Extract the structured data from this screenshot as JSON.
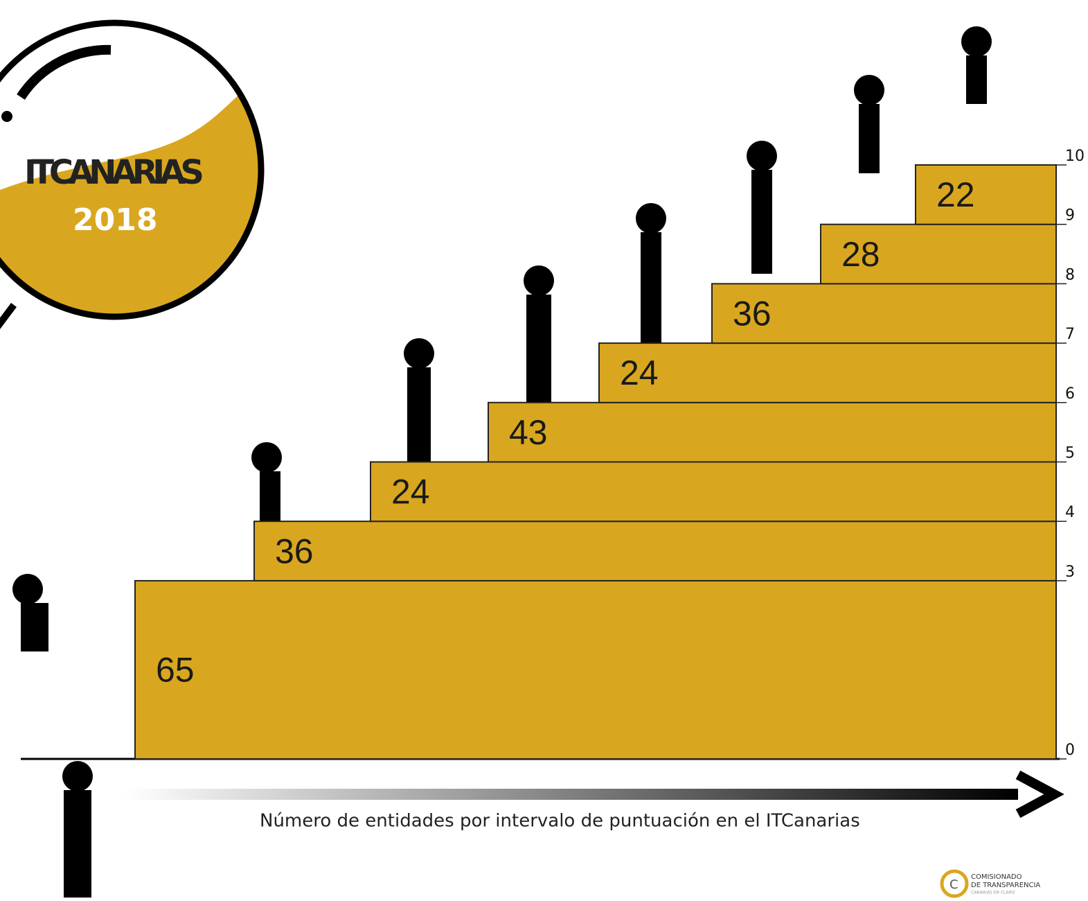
{
  "chart_data": {
    "type": "stairs",
    "title": "ITCANARIAS",
    "subtitle": "2018",
    "x_label": "Número de entidades por intervalo de puntuación en el ITCanarias",
    "values": [
      65,
      36,
      24,
      43,
      24,
      36,
      28,
      22
    ],
    "color": "#d9a71f",
    "ylim": [
      0,
      10
    ],
    "yticks": [
      0,
      3,
      4,
      5,
      6,
      7,
      8,
      9,
      10
    ]
  },
  "logo": {
    "line1": "COMISIONADO",
    "line2": "DE TRANSPARENCIA",
    "line3": "CANARIAS EN CLARO"
  }
}
